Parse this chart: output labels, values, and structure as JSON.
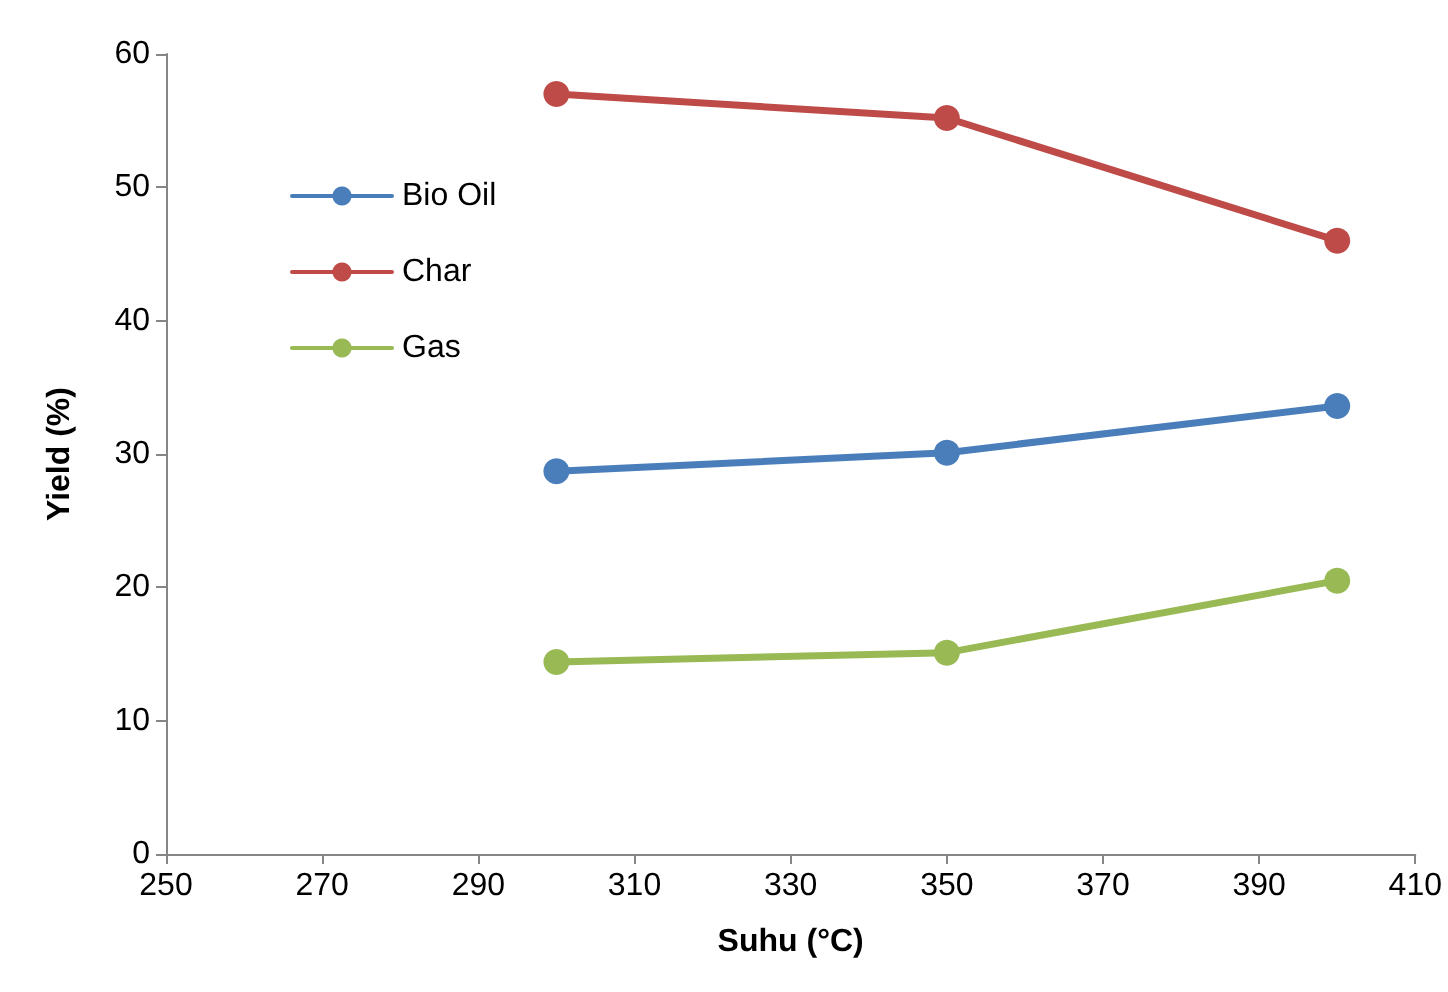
{
  "chart_data": {
    "type": "line",
    "xlabel": "Suhu (°C)",
    "ylabel": "Yield (%)",
    "x": [
      300,
      350,
      400
    ],
    "series": [
      {
        "name": "Bio Oil",
        "color": "#4a7ebb",
        "values": [
          28.7,
          30.1,
          33.6
        ]
      },
      {
        "name": "Char",
        "color": "#be4b48",
        "values": [
          57,
          55.2,
          46
        ]
      },
      {
        "name": "Gas",
        "color": "#98b954",
        "values": [
          14.4,
          15.1,
          20.5
        ]
      }
    ],
    "xlim": [
      250,
      410
    ],
    "xticks": [
      250,
      270,
      290,
      310,
      330,
      350,
      370,
      390,
      410
    ],
    "ylim": [
      0,
      60
    ],
    "yticks": [
      0,
      10,
      20,
      30,
      40,
      50,
      60
    ],
    "grid": false,
    "legend": "top left",
    "marker": "circle",
    "line_style": "solid"
  }
}
